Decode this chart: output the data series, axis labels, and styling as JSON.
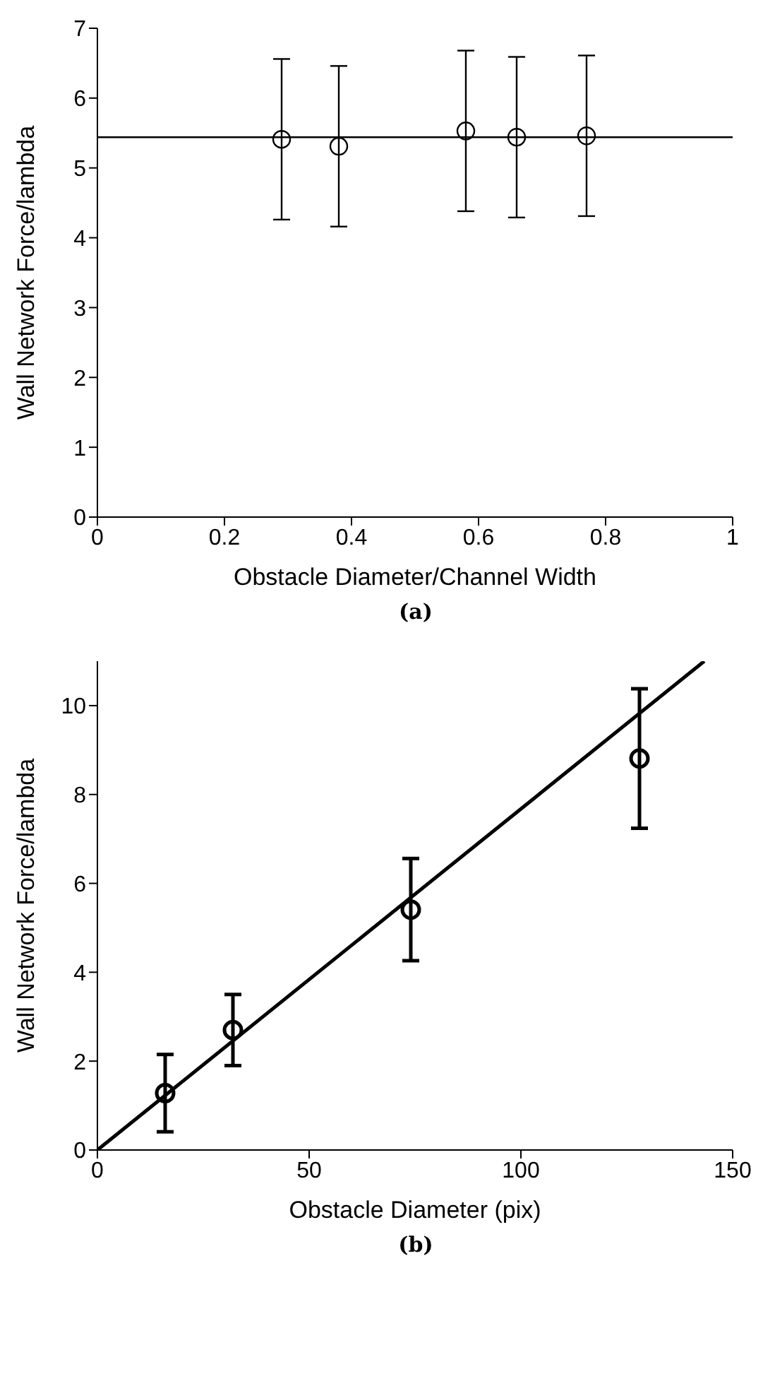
{
  "chart_data": [
    {
      "type": "scatter",
      "xlabel": "Obstacle Diameter/Channel Width",
      "ylabel": "Wall Network Force/lambda",
      "annotations": [
        "(a)"
      ],
      "xlim": [
        0,
        1
      ],
      "ylim": [
        0,
        7
      ],
      "xticks": [
        0,
        0.2,
        0.4,
        0.6,
        0.8,
        1
      ],
      "yticks": [
        0,
        1,
        2,
        3,
        4,
        5,
        6,
        7
      ],
      "grid": false,
      "legend": false,
      "marker": "circle",
      "series": [
        {
          "color": "#000000",
          "x": [
            0.29,
            0.38,
            0.58,
            0.66,
            0.77
          ],
          "values": [
            5.41,
            5.31,
            5.53,
            5.44,
            5.46
          ],
          "errors": [
            1.15,
            1.15,
            1.15,
            1.15,
            1.15
          ]
        },
        {
          "type": "line",
          "color": "#000000",
          "marker": "none",
          "x": [
            0,
            1
          ],
          "values": [
            5.44,
            5.44
          ]
        }
      ]
    },
    {
      "type": "scatter",
      "xlabel": "Obstacle Diameter (pix)",
      "ylabel": "Wall Network Force/lambda",
      "annotations": [
        "(b)"
      ],
      "xlim": [
        0,
        150
      ],
      "ylim": [
        0,
        11
      ],
      "xticks": [
        0,
        50,
        100,
        150
      ],
      "yticks": [
        0,
        2,
        4,
        6,
        8,
        10
      ],
      "grid": false,
      "legend": false,
      "marker": "circle",
      "series": [
        {
          "color": "#000000",
          "x": [
            16,
            32,
            74,
            128
          ],
          "values": [
            1.28,
            2.7,
            5.41,
            8.81
          ],
          "errors": [
            0.87,
            0.8,
            1.15,
            1.57
          ]
        },
        {
          "type": "line",
          "color": "#000000",
          "marker": "none",
          "x": [
            0,
            143.3
          ],
          "values": [
            0,
            11
          ]
        }
      ]
    }
  ]
}
